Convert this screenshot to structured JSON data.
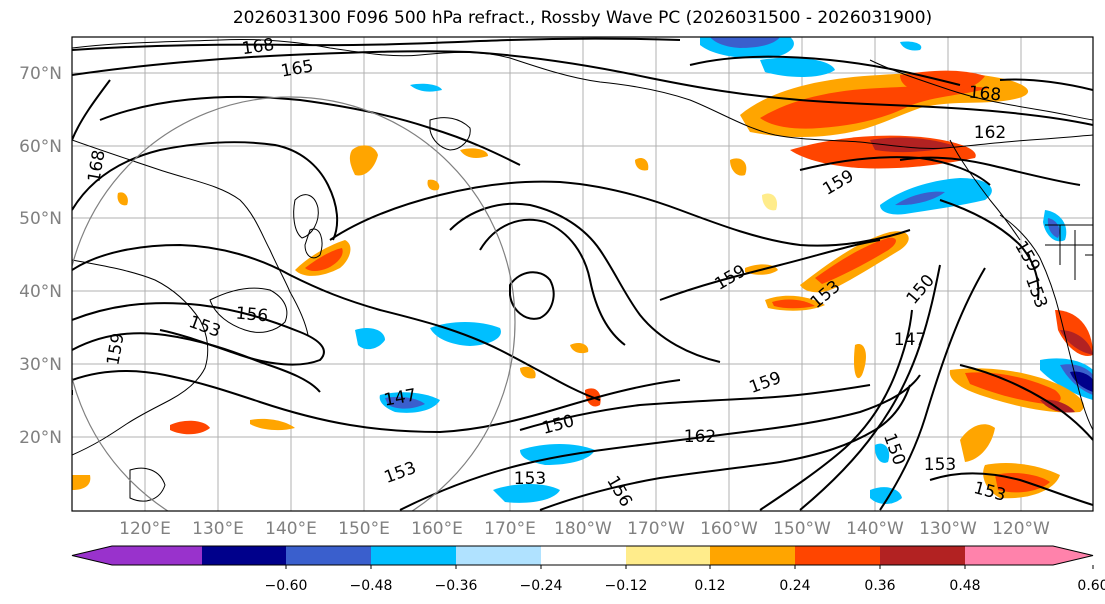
{
  "title": "2026031300 F096 500 hPa refract., Rossby Wave PC (2026031500 - 2026031900)",
  "lat_labels": [
    "70°N",
    "60°N",
    "50°N",
    "40°N",
    "30°N",
    "20°N"
  ],
  "lon_labels": [
    "120°E",
    "130°E",
    "140°E",
    "150°E",
    "160°E",
    "170°E",
    "180°W",
    "170°W",
    "160°W",
    "150°W",
    "140°W",
    "130°W",
    "120°W"
  ],
  "contour_labels": [
    "168",
    "165",
    "168",
    "156",
    "153",
    "159",
    "147",
    "150",
    "153",
    "153",
    "156",
    "159",
    "162",
    "159",
    "153",
    "150",
    "147",
    "168",
    "162",
    "159",
    "159",
    "153",
    "150",
    "153",
    "153"
  ],
  "colorbar": {
    "colors": [
      "#9932cc",
      "#00008b",
      "#3a5fcd",
      "#00bfff",
      "#b0e2ff",
      "#ffffff",
      "#ffec8b",
      "#ffa500",
      "#ff4500",
      "#b22222",
      "#ff82ab"
    ],
    "tick_labels": [
      "−0.60",
      "−0.48",
      "−0.36",
      "−0.24",
      "−0.12",
      "0.12",
      "0.24",
      "0.36",
      "0.48",
      "0.60"
    ]
  }
}
